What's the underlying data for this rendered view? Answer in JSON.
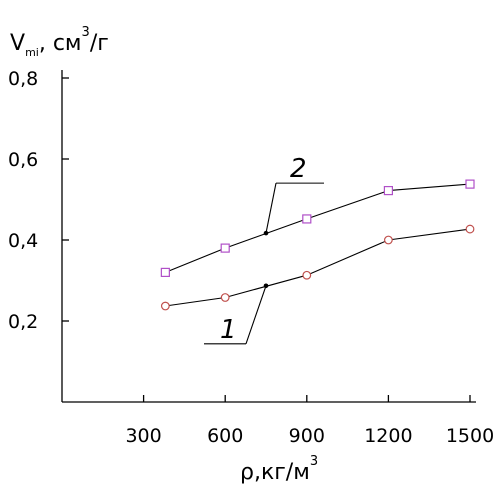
{
  "chart_data": {
    "type": "line",
    "title": "",
    "xlabel": "ρ,кг/м",
    "xlabel_sup": "3",
    "ylabel": "V",
    "ylabel_sub": "mi",
    "ylabel_rest": ", см",
    "ylabel_sup": "3",
    "ylabel_tail": "/г",
    "xlim": [
      0,
      1500
    ],
    "ylim": [
      0.0,
      0.8
    ],
    "x_ticks": [
      300,
      600,
      900,
      1200,
      1500
    ],
    "x_tick_labels": [
      "300",
      "600",
      "900",
      "1200",
      "1500"
    ],
    "y_ticks": [
      0.2,
      0.4,
      0.6,
      0.8
    ],
    "y_tick_labels": [
      "0,2",
      "0,4",
      "0,6",
      "0,8"
    ],
    "grid": false,
    "series": [
      {
        "name": "1",
        "marker": "circle",
        "color": "#c0504d",
        "x": [
          380,
          600,
          900,
          1200,
          1500
        ],
        "y": [
          0.237,
          0.258,
          0.313,
          0.4,
          0.427
        ]
      },
      {
        "name": "2",
        "marker": "square",
        "color": "#b050c8",
        "x": [
          380,
          600,
          900,
          1200,
          1500
        ],
        "y": [
          0.32,
          0.38,
          0.452,
          0.522,
          0.538
        ]
      }
    ],
    "annotations": [
      {
        "text": "1",
        "series": "1",
        "x": 750,
        "y": 0.287
      },
      {
        "text": "2",
        "series": "2",
        "x": 750,
        "y": 0.417
      }
    ]
  }
}
